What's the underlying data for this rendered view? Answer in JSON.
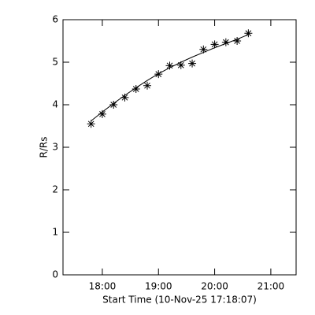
{
  "chart_data": {
    "type": "scatter",
    "xlabel": "Start Time (10-Nov-25 17:18:07)",
    "ylabel": "R/Rs",
    "x": [
      17.8,
      18.0,
      18.2,
      18.4,
      18.6,
      18.8,
      19.0,
      19.2,
      19.4,
      19.6,
      19.8,
      20.0,
      20.2,
      20.4,
      20.6
    ],
    "series": [
      {
        "style": "asterisk",
        "color": "#000000",
        "values": [
          3.55,
          3.78,
          4.0,
          4.17,
          4.37,
          4.45,
          4.72,
          4.92,
          4.93,
          4.97,
          5.3,
          5.42,
          5.47,
          5.5,
          5.68
        ]
      },
      {
        "style": "line",
        "color": "#000000",
        "values": [
          3.62,
          3.83,
          4.03,
          4.22,
          4.4,
          4.57,
          4.73,
          4.87,
          5.0,
          5.12,
          5.23,
          5.34,
          5.44,
          5.54,
          5.65
        ]
      }
    ],
    "xlim": [
      17.3,
      21.45
    ],
    "xticks": [
      {
        "value": 18,
        "label": "18:00"
      },
      {
        "value": 19,
        "label": "19:00"
      },
      {
        "value": 20,
        "label": "20:00"
      },
      {
        "value": 21,
        "label": "21:00"
      }
    ],
    "ylim": [
      0,
      6
    ],
    "yticks": [
      0,
      1,
      2,
      3,
      4,
      5,
      6
    ]
  }
}
